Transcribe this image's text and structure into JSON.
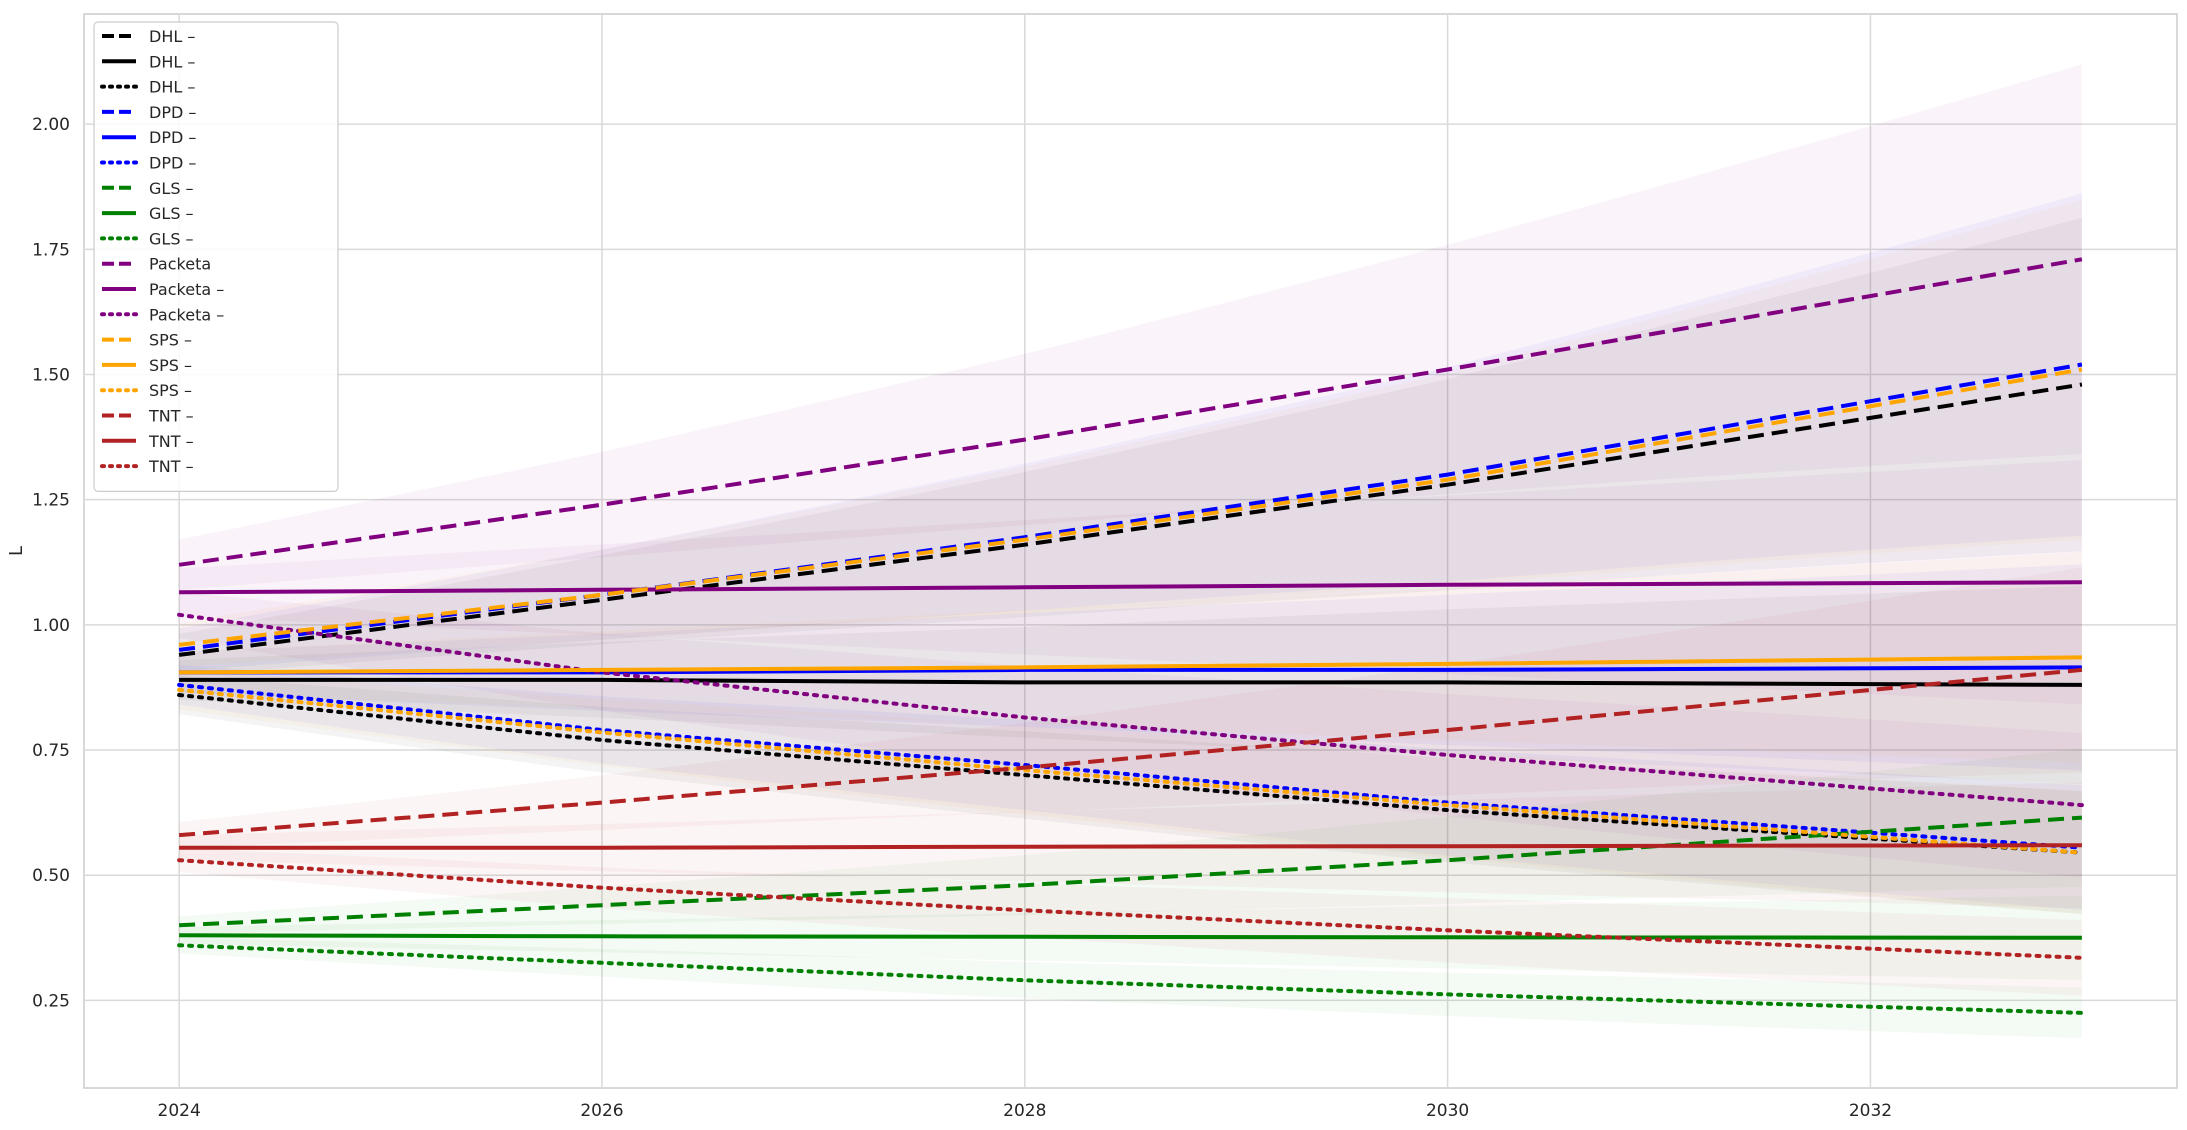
{
  "chart_data": {
    "type": "line",
    "xlabel": "",
    "ylabel": "L",
    "xlim": [
      2023.55,
      2033.45
    ],
    "ylim": [
      0.075,
      2.22
    ],
    "grid": true,
    "legend_position": "top-left",
    "x_ticks": [
      "2024",
      "2026",
      "2028",
      "2030",
      "2032"
    ],
    "y_ticks": [
      "0.25",
      "0.50",
      "0.75",
      "1.00",
      "1.25",
      "1.50",
      "1.75",
      "2.00"
    ],
    "colors": {
      "DHL": "#000000",
      "DPD": "#0000ff",
      "GLS": "#008000",
      "Packeta": "#800080",
      "SPS": "#ffa500",
      "TNT": "#b22222"
    },
    "series": [
      {
        "name": "DHL –",
        "company": "DHL",
        "style": "dashed",
        "x": [
          2024,
          2026,
          2028,
          2030,
          2033
        ],
        "y": [
          0.94,
          1.05,
          1.16,
          1.28,
          1.48
        ]
      },
      {
        "name": "DHL –",
        "company": "DHL",
        "style": "solid",
        "x": [
          2024,
          2026,
          2028,
          2030,
          2033
        ],
        "y": [
          0.89,
          0.89,
          0.885,
          0.885,
          0.88
        ]
      },
      {
        "name": "DHL –",
        "company": "DHL",
        "style": "dotted",
        "x": [
          2024,
          2026,
          2028,
          2030,
          2033
        ],
        "y": [
          0.86,
          0.77,
          0.7,
          0.63,
          0.545
        ]
      },
      {
        "name": "DPD –",
        "company": "DPD",
        "style": "dashed",
        "x": [
          2024,
          2026,
          2028,
          2030,
          2033
        ],
        "y": [
          0.95,
          1.06,
          1.175,
          1.3,
          1.52
        ]
      },
      {
        "name": "DPD –",
        "company": "DPD",
        "style": "solid",
        "x": [
          2024,
          2026,
          2028,
          2030,
          2033
        ],
        "y": [
          0.905,
          0.905,
          0.91,
          0.91,
          0.915
        ]
      },
      {
        "name": "DPD –",
        "company": "DPD",
        "style": "dotted",
        "x": [
          2024,
          2026,
          2028,
          2030,
          2033
        ],
        "y": [
          0.88,
          0.79,
          0.72,
          0.645,
          0.555
        ]
      },
      {
        "name": "GLS –",
        "company": "GLS",
        "style": "dashed",
        "x": [
          2024,
          2026,
          2028,
          2030,
          2033
        ],
        "y": [
          0.4,
          0.44,
          0.48,
          0.53,
          0.615
        ]
      },
      {
        "name": "GLS –",
        "company": "GLS",
        "style": "solid",
        "x": [
          2024,
          2026,
          2028,
          2030,
          2033
        ],
        "y": [
          0.38,
          0.378,
          0.377,
          0.376,
          0.375
        ]
      },
      {
        "name": "GLS –",
        "company": "GLS",
        "style": "dotted",
        "x": [
          2024,
          2026,
          2028,
          2030,
          2033
        ],
        "y": [
          0.36,
          0.325,
          0.29,
          0.262,
          0.225
        ]
      },
      {
        "name": "Packeta",
        "company": "Packeta",
        "style": "dashed",
        "x": [
          2024,
          2026,
          2028,
          2030,
          2033
        ],
        "y": [
          1.12,
          1.24,
          1.37,
          1.51,
          1.73
        ]
      },
      {
        "name": "Packeta –",
        "company": "Packeta",
        "style": "solid",
        "x": [
          2024,
          2026,
          2028,
          2030,
          2033
        ],
        "y": [
          1.065,
          1.07,
          1.075,
          1.08,
          1.085
        ]
      },
      {
        "name": "Packeta –",
        "company": "Packeta",
        "style": "dotted",
        "x": [
          2024,
          2026,
          2028,
          2030,
          2033
        ],
        "y": [
          1.02,
          0.905,
          0.815,
          0.74,
          0.64
        ]
      },
      {
        "name": "SPS –",
        "company": "SPS",
        "style": "dashed",
        "x": [
          2024,
          2026,
          2028,
          2030,
          2033
        ],
        "y": [
          0.96,
          1.06,
          1.17,
          1.29,
          1.51
        ]
      },
      {
        "name": "SPS –",
        "company": "SPS",
        "style": "solid",
        "x": [
          2024,
          2026,
          2028,
          2030,
          2033
        ],
        "y": [
          0.905,
          0.91,
          0.915,
          0.922,
          0.935
        ]
      },
      {
        "name": "SPS –",
        "company": "SPS",
        "style": "dotted",
        "x": [
          2024,
          2026,
          2028,
          2030,
          2033
        ],
        "y": [
          0.87,
          0.785,
          0.71,
          0.64,
          0.545
        ]
      },
      {
        "name": "TNT –",
        "company": "TNT",
        "style": "dashed",
        "x": [
          2024,
          2026,
          2028,
          2030,
          2033
        ],
        "y": [
          0.58,
          0.645,
          0.715,
          0.79,
          0.91
        ]
      },
      {
        "name": "TNT –",
        "company": "TNT",
        "style": "solid",
        "x": [
          2024,
          2026,
          2028,
          2030,
          2033
        ],
        "y": [
          0.555,
          0.555,
          0.557,
          0.558,
          0.56
        ]
      },
      {
        "name": "TNT –",
        "company": "TNT",
        "style": "dotted",
        "x": [
          2024,
          2026,
          2028,
          2030,
          2033
        ],
        "y": [
          0.53,
          0.475,
          0.43,
          0.39,
          0.335
        ]
      }
    ]
  }
}
